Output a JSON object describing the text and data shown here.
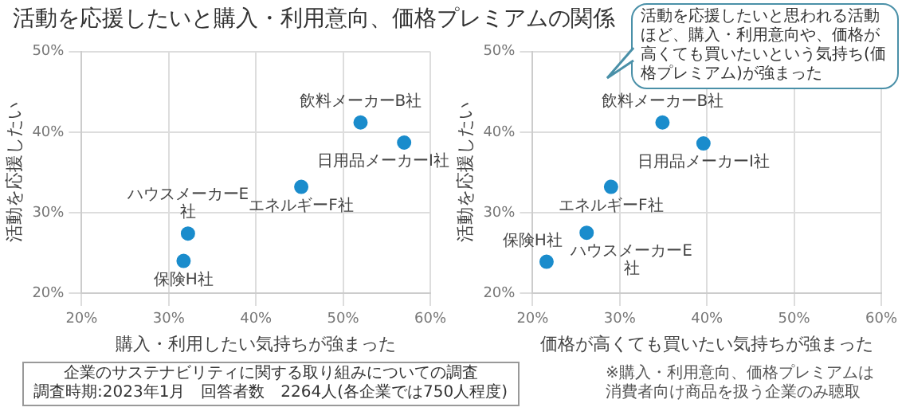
{
  "chart_data": [
    {
      "type": "scatter",
      "title": "活動を応援したいと購入・利用意向、価格プレミアムの関係",
      "xlabel": "購入・利用したい気持ちが強まった",
      "ylabel": "活動を応援したい",
      "xlim": [
        20,
        60
      ],
      "ylim": [
        20,
        50
      ],
      "xticks": [
        {
          "value": 20,
          "label": "20%"
        },
        {
          "value": 30,
          "label": "30%"
        },
        {
          "value": 40,
          "label": "40%"
        },
        {
          "value": 50,
          "label": "50%"
        },
        {
          "value": 60,
          "label": "60%"
        }
      ],
      "yticks": [
        {
          "value": 20,
          "label": "20%"
        },
        {
          "value": 30,
          "label": "30%"
        },
        {
          "value": 40,
          "label": "40%"
        },
        {
          "value": 50,
          "label": "50%"
        }
      ],
      "grid": true,
      "legend": false,
      "marker": "circle",
      "series": [
        {
          "color": "#1a8ccc",
          "x": [
            52.0,
            57.0,
            45.2,
            32.2,
            31.7
          ],
          "values": [
            41.2,
            38.7,
            33.2,
            27.4,
            24.0
          ]
        }
      ],
      "annotations": [
        {
          "text": "飲料メーカーB社",
          "x": 52.0,
          "y": 41.2
        },
        {
          "text": "日用品メーカーI社",
          "x": 57.0,
          "y": 38.7
        },
        {
          "text": "エネルギーF社",
          "x": 45.2,
          "y": 33.2
        },
        {
          "text": "ハウスメーカーE\n社",
          "x": 32.2,
          "y": 27.4
        },
        {
          "text": "保険H社",
          "x": 31.7,
          "y": 24.0
        },
        "企業のサステナビリティに関する取り組みについての調査",
        "調査時期:2023年1月　回答者数　2264人(各企業では750人程度)"
      ]
    },
    {
      "type": "scatter",
      "xlabel": "価格が高くても買いたい気持ちが強まった",
      "ylabel": "活動を応援したい",
      "xlim": [
        20,
        60
      ],
      "ylim": [
        20,
        50
      ],
      "xticks": [
        {
          "value": 20,
          "label": "20%"
        },
        {
          "value": 30,
          "label": "30%"
        },
        {
          "value": 40,
          "label": "40%"
        },
        {
          "value": 50,
          "label": "50%"
        },
        {
          "value": 60,
          "label": "60%"
        }
      ],
      "yticks": [
        {
          "value": 20,
          "label": "20%"
        },
        {
          "value": 30,
          "label": "30%"
        },
        {
          "value": 40,
          "label": "40%"
        },
        {
          "value": 50,
          "label": "50%"
        }
      ],
      "grid": true,
      "legend": false,
      "marker": "circle",
      "series": [
        {
          "color": "#1a8ccc",
          "x": [
            34.9,
            39.6,
            29.0,
            26.2,
            21.6
          ],
          "values": [
            41.2,
            38.6,
            33.2,
            27.5,
            23.9
          ]
        }
      ],
      "annotations": [
        {
          "text": "飲料メーカーB社",
          "x": 34.9,
          "y": 41.2
        },
        {
          "text": "日用品メーカーI社",
          "x": 39.6,
          "y": 38.6
        },
        {
          "text": "エネルギーF社",
          "x": 29.0,
          "y": 33.2
        },
        {
          "text": "ハウスメーカーE\n社",
          "x": 26.2,
          "y": 27.5
        },
        {
          "text": "保険H社",
          "x": 21.6,
          "y": 23.9
        },
        "活動を応援したいと思われる活動ほど、購入・利用意向や、価格が高くても買いたいという気持ち(価格プレミアム)が強まった",
        "※購入・利用意向、価格プレミアムは消費者向け商品を扱う企業のみ聴取"
      ]
    }
  ]
}
